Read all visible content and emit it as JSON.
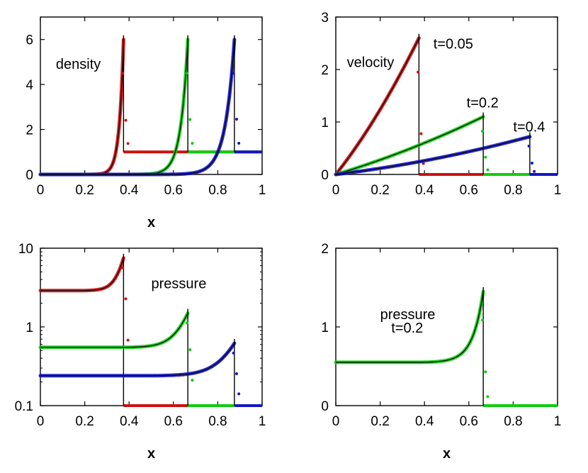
{
  "colors": {
    "red": "#cc1111",
    "green": "#10cc10",
    "blue": "#1515c8",
    "black": "#000000"
  },
  "chart_data": [
    {
      "type": "line",
      "id": "density",
      "scale": "linear",
      "xlabel": "x",
      "xlim": [
        0,
        1
      ],
      "ylim": [
        0,
        7
      ],
      "xticks": [
        0,
        0.2,
        0.4,
        0.6,
        0.8,
        1
      ],
      "xticklabels": [
        "0",
        "0.2",
        "0.4",
        "0.6",
        "0.8",
        "1"
      ],
      "yticks": [
        0,
        2,
        4,
        6
      ],
      "yticklabels": [
        "0",
        "2",
        "4",
        "6"
      ],
      "annotations": [
        {
          "text": "density",
          "x": 0.07,
          "y": 4.7
        }
      ],
      "series": [
        {
          "name": "t=0.05",
          "color": "red",
          "kind": "density",
          "shock": 0.375,
          "foot": 0.2,
          "peak": 6.0,
          "base": 0.0,
          "post": 1.0,
          "k": 9
        },
        {
          "name": "t=0.2",
          "color": "green",
          "kind": "density",
          "shock": 0.665,
          "foot": 0.38,
          "peak": 6.0,
          "base": 0.0,
          "post": 1.0,
          "k": 9
        },
        {
          "name": "t=0.4",
          "color": "blue",
          "kind": "density",
          "shock": 0.875,
          "foot": 0.5,
          "peak": 6.0,
          "base": 0.0,
          "post": 1.0,
          "k": 9
        }
      ]
    },
    {
      "type": "line",
      "id": "velocity",
      "scale": "linear",
      "xlabel": "",
      "xlim": [
        0,
        1
      ],
      "ylim": [
        0,
        3
      ],
      "xticks": [
        0,
        0.2,
        0.4,
        0.6,
        0.8,
        1
      ],
      "xticklabels": [
        "0",
        "0.2",
        "0.4",
        "0.6",
        "0.8",
        "1"
      ],
      "yticks": [
        0,
        1,
        2,
        3
      ],
      "yticklabels": [
        "0",
        "1",
        "2",
        "3"
      ],
      "annotations": [
        {
          "text": "velocity",
          "x": 0.05,
          "y": 2.05
        },
        {
          "text": "t=0.05",
          "x": 0.44,
          "y": 2.4
        },
        {
          "text": "t=0.2",
          "x": 0.59,
          "y": 1.28
        },
        {
          "text": "t=0.4",
          "x": 0.8,
          "y": 0.82
        }
      ],
      "series": [
        {
          "name": "t=0.05",
          "color": "red",
          "kind": "velocity",
          "shock": 0.375,
          "peak": 2.6,
          "base": 0,
          "post": 0,
          "k": 0.3
        },
        {
          "name": "t=0.2",
          "color": "green",
          "kind": "velocity",
          "shock": 0.665,
          "peak": 1.1,
          "base": 0,
          "post": 0,
          "k": 0.3
        },
        {
          "name": "t=0.4",
          "color": "blue",
          "kind": "velocity",
          "shock": 0.875,
          "peak": 0.72,
          "base": 0,
          "post": 0,
          "k": 0.6
        }
      ]
    },
    {
      "type": "line",
      "id": "pressure-log",
      "scale": "log",
      "xlabel": "x",
      "xlim": [
        0,
        1
      ],
      "ylim": [
        0.1,
        10
      ],
      "xticks": [
        0,
        0.2,
        0.4,
        0.6,
        0.8,
        1
      ],
      "xticklabels": [
        "0",
        "0.2",
        "0.4",
        "0.6",
        "0.8",
        "1"
      ],
      "yticks": [
        0.1,
        1,
        10
      ],
      "yticklabels": [
        "0.1",
        "1",
        "10"
      ],
      "annotations": [
        {
          "text": "pressure",
          "x": 0.5,
          "y": 3.1
        }
      ],
      "series": [
        {
          "name": "t=0.05",
          "color": "red",
          "kind": "pressure",
          "shock": 0.375,
          "foot": 0.2,
          "peak": 7.5,
          "base": 2.9,
          "post": 0.1,
          "k": 6
        },
        {
          "name": "t=0.2",
          "color": "green",
          "kind": "pressure",
          "shock": 0.665,
          "foot": 0.38,
          "peak": 1.5,
          "base": 0.55,
          "post": 0.1,
          "k": 6
        },
        {
          "name": "t=0.4",
          "color": "blue",
          "kind": "pressure",
          "shock": 0.875,
          "foot": 0.5,
          "peak": 0.62,
          "base": 0.24,
          "post": 0.1,
          "k": 6
        }
      ]
    },
    {
      "type": "line",
      "id": "pressure-t02",
      "scale": "linear",
      "xlabel": "x",
      "xlim": [
        0,
        1
      ],
      "ylim": [
        0,
        2
      ],
      "xticks": [
        0,
        0.2,
        0.4,
        0.6,
        0.8,
        1
      ],
      "xticklabels": [
        "0",
        "0.2",
        "0.4",
        "0.6",
        "0.8",
        "1"
      ],
      "yticks": [
        0,
        1,
        2
      ],
      "yticklabels": [
        "0",
        "1",
        "2"
      ],
      "annotations": [
        {
          "text": "pressure",
          "x": 0.2,
          "y": 1.1
        },
        {
          "text": "t=0.2",
          "x": 0.25,
          "y": 0.93
        }
      ],
      "series": [
        {
          "name": "t=0.2",
          "color": "green",
          "kind": "pressure",
          "shock": 0.665,
          "foot": 0.38,
          "peak": 1.45,
          "base": 0.55,
          "post": 0.0,
          "k": 6
        }
      ]
    }
  ]
}
